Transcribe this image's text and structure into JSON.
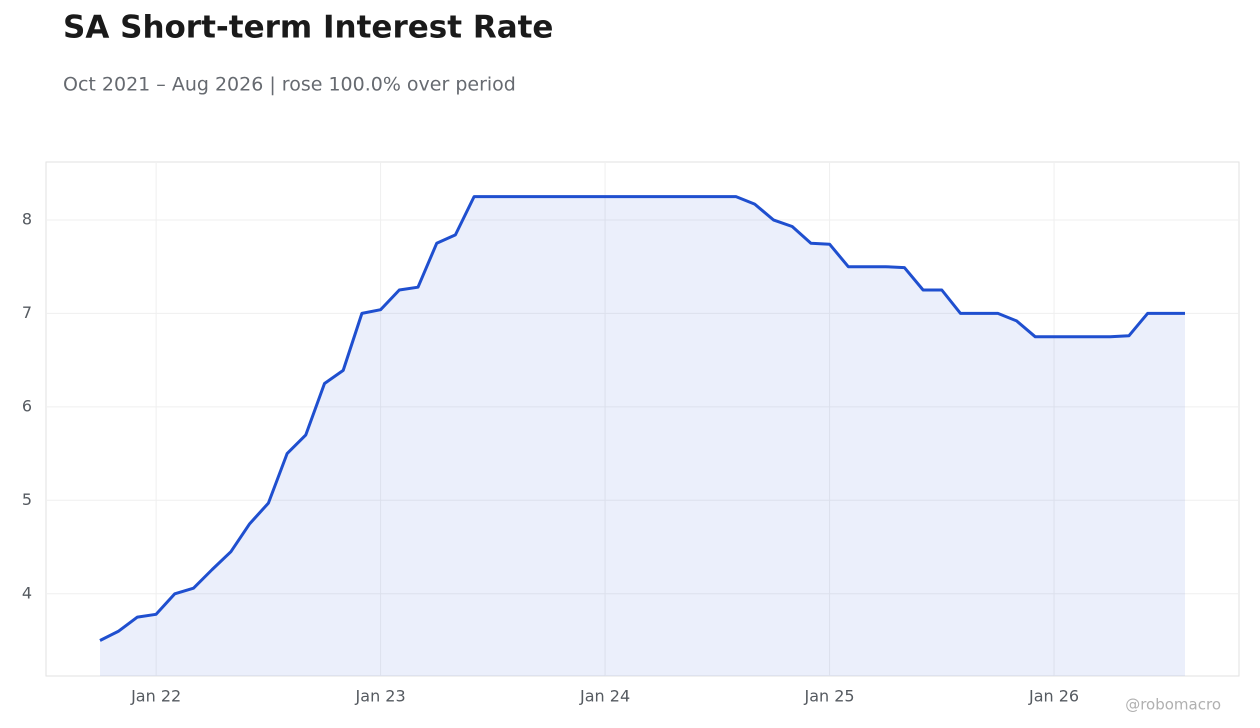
{
  "chart_data": {
    "type": "line",
    "title": "SA Short-term Interest Rate",
    "subtitle": "Oct 2021 – Aug 2026 | rose 100.0% over period",
    "watermark": "@robomacro",
    "x": [
      "2021-10",
      "2021-11",
      "2021-12",
      "2022-01",
      "2022-02",
      "2022-03",
      "2022-04",
      "2022-05",
      "2022-06",
      "2022-07",
      "2022-08",
      "2022-09",
      "2022-10",
      "2022-11",
      "2022-12",
      "2023-01",
      "2023-02",
      "2023-03",
      "2023-04",
      "2023-05",
      "2023-06",
      "2023-07",
      "2023-08",
      "2023-09",
      "2023-10",
      "2023-11",
      "2023-12",
      "2024-01",
      "2024-02",
      "2024-03",
      "2024-04",
      "2024-05",
      "2024-06",
      "2024-07",
      "2024-08",
      "2024-09",
      "2024-10",
      "2024-11",
      "2024-12",
      "2025-01",
      "2025-02",
      "2025-03",
      "2025-04",
      "2025-05",
      "2025-06",
      "2025-07",
      "2025-08",
      "2025-09",
      "2025-10",
      "2025-11",
      "2025-12",
      "2026-01",
      "2026-02",
      "2026-03",
      "2026-04",
      "2026-05",
      "2026-06",
      "2026-07",
      "2026-08"
    ],
    "series": [
      {
        "name": "SA Short-term Interest Rate",
        "color": "#1f4fcf",
        "values": [
          3.5,
          3.6,
          3.75,
          3.78,
          4.0,
          4.06,
          4.26,
          4.45,
          4.75,
          4.97,
          5.5,
          5.7,
          6.25,
          6.39,
          7.0,
          7.04,
          7.25,
          7.28,
          7.75,
          7.84,
          8.25,
          8.25,
          8.25,
          8.25,
          8.25,
          8.25,
          8.25,
          8.25,
          8.25,
          8.25,
          8.25,
          8.25,
          8.25,
          8.25,
          8.25,
          8.17,
          8.0,
          7.93,
          7.75,
          7.74,
          7.5,
          7.5,
          7.5,
          7.49,
          7.25,
          7.25,
          7.0,
          7.0,
          7.0,
          6.92,
          6.75,
          6.75,
          6.75,
          6.75,
          6.75,
          6.76,
          7.0,
          7.0,
          7.0
        ]
      }
    ],
    "xticks": [
      {
        "value": "2022-01",
        "label": "Jan 22"
      },
      {
        "value": "2023-01",
        "label": "Jan 23"
      },
      {
        "value": "2024-01",
        "label": "Jan 24"
      },
      {
        "value": "2025-01",
        "label": "Jan 25"
      },
      {
        "value": "2026-01",
        "label": "Jan 26"
      }
    ],
    "ylim": [
      3.12,
      8.62
    ],
    "yticks": [
      4,
      5,
      6,
      7,
      8
    ],
    "grid": true,
    "area": true
  }
}
